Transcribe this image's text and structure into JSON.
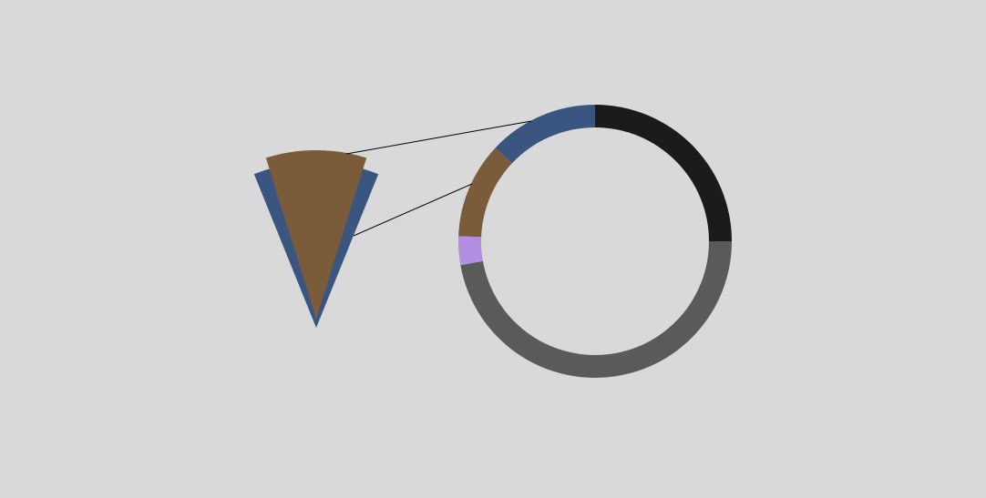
{
  "chart_data": {
    "type": "pie",
    "variant": "donut-with-exploded-detail",
    "background": "#d9d9d9",
    "title": "",
    "legend": "none",
    "slices": [
      {
        "value": 25.0,
        "color": "#1b1b1e"
      },
      {
        "value": 47.2,
        "color": "#5a5a5a"
      },
      {
        "value": 3.4,
        "color": "#b28fe0"
      },
      {
        "value": 11.4,
        "color": "#7b5c3a"
      },
      {
        "value": 13.0,
        "color": "#3a5680"
      }
    ],
    "detail": {
      "description_of_source_slices": [
        4,
        3
      ],
      "connector_color": "#000000"
    }
  }
}
